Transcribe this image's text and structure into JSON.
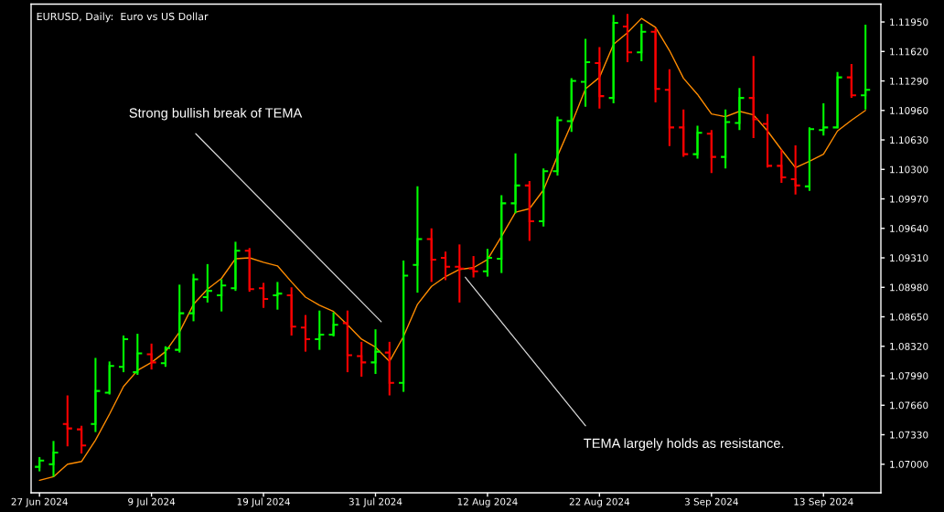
{
  "chart_data": {
    "type": "candlestick",
    "title": "EURUSD, Daily:  Euro vs US Dollar",
    "categories": [
      "27 Jun 2024",
      null,
      null,
      null,
      null,
      null,
      null,
      null,
      "9 Jul 2024",
      null,
      null,
      null,
      null,
      null,
      null,
      null,
      "19 Jul 2024",
      null,
      null,
      null,
      null,
      null,
      null,
      null,
      "31 Jul 2024",
      null,
      null,
      null,
      null,
      null,
      null,
      null,
      "12 Aug 2024",
      null,
      null,
      null,
      null,
      null,
      null,
      null,
      "22 Aug 2024",
      null,
      null,
      null,
      null,
      null,
      null,
      null,
      "3 Sep 2024",
      null,
      null,
      null,
      null,
      null,
      null,
      null,
      "13 Sep 2024",
      null,
      null,
      null
    ],
    "ohlc": [
      [
        1.0697,
        1.0708,
        1.0692,
        1.0704
      ],
      [
        1.07,
        1.0726,
        1.0686,
        1.0713
      ],
      [
        1.0745,
        1.0777,
        1.072,
        1.074
      ],
      [
        1.0739,
        1.0743,
        1.0712,
        1.0721
      ],
      [
        1.0745,
        1.0819,
        1.0736,
        1.0782
      ],
      [
        1.078,
        1.0815,
        1.0778,
        1.081
      ],
      [
        1.0809,
        1.0844,
        1.0803,
        1.084
      ],
      [
        1.0803,
        1.0846,
        1.08,
        1.0824
      ],
      [
        1.0823,
        1.0835,
        1.0806,
        1.0814
      ],
      [
        1.0813,
        1.0832,
        1.0809,
        1.083
      ],
      [
        1.0828,
        1.0901,
        1.0825,
        1.0869
      ],
      [
        1.0869,
        1.0913,
        1.086,
        1.0907
      ],
      [
        1.0887,
        1.0924,
        1.0881,
        1.0894
      ],
      [
        1.0889,
        1.0907,
        1.0871,
        1.09
      ],
      [
        1.0897,
        1.0949,
        1.0894,
        1.0939
      ],
      [
        1.0939,
        1.0942,
        1.0893,
        1.0896
      ],
      [
        1.0897,
        1.0903,
        1.0875,
        1.0885
      ],
      [
        1.0889,
        1.0904,
        1.0873,
        1.0891
      ],
      [
        1.0889,
        1.0898,
        1.0844,
        1.0854
      ],
      [
        1.0853,
        1.0867,
        1.0826,
        1.084
      ],
      [
        1.084,
        1.0872,
        1.0828,
        1.0845
      ],
      [
        1.0845,
        1.087,
        1.0843,
        1.0856
      ],
      [
        1.0858,
        1.0872,
        1.0803,
        1.0822
      ],
      [
        1.0821,
        1.0837,
        1.0798,
        1.0814
      ],
      [
        1.0814,
        1.0851,
        1.0801,
        1.0826
      ],
      [
        1.0825,
        1.0837,
        1.0777,
        1.0791
      ],
      [
        1.0791,
        1.0928,
        1.0781,
        1.0911
      ],
      [
        1.0923,
        1.1011,
        1.0892,
        1.0952
      ],
      [
        1.0952,
        1.0964,
        1.0904,
        1.0929
      ],
      [
        1.0931,
        1.0938,
        1.0906,
        1.0921
      ],
      [
        1.0921,
        1.0946,
        1.0881,
        1.0919
      ],
      [
        1.0919,
        1.0933,
        1.0909,
        1.0916
      ],
      [
        1.0916,
        1.0941,
        1.091,
        1.0931
      ],
      [
        1.093,
        1.1001,
        1.0914,
        1.0992
      ],
      [
        1.0992,
        1.1048,
        1.0981,
        1.1012
      ],
      [
        1.1012,
        1.1017,
        1.095,
        1.0972
      ],
      [
        1.0972,
        1.1031,
        1.0966,
        1.1028
      ],
      [
        1.1028,
        1.1089,
        1.1023,
        1.1085
      ],
      [
        1.1084,
        1.1132,
        1.1072,
        1.1129
      ],
      [
        1.1128,
        1.1176,
        1.11,
        1.115
      ],
      [
        1.1149,
        1.1167,
        1.1098,
        1.1112
      ],
      [
        1.111,
        1.1203,
        1.1104,
        1.1194
      ],
      [
        1.119,
        1.1204,
        1.115,
        1.1161
      ],
      [
        1.1161,
        1.1193,
        1.1151,
        1.1184
      ],
      [
        1.1184,
        1.1188,
        1.1105,
        1.112
      ],
      [
        1.1119,
        1.1142,
        1.1056,
        1.1077
      ],
      [
        1.1077,
        1.1097,
        1.1044,
        1.1047
      ],
      [
        1.1047,
        1.1079,
        1.1042,
        1.1071
      ],
      [
        1.107,
        1.1074,
        1.1026,
        1.1044
      ],
      [
        1.1044,
        1.1097,
        1.1031,
        1.1083
      ],
      [
        1.1082,
        1.1121,
        1.1074,
        1.111
      ],
      [
        1.111,
        1.1157,
        1.1065,
        1.1086
      ],
      [
        1.1081,
        1.1092,
        1.1032,
        1.1034
      ],
      [
        1.1034,
        1.1052,
        1.1015,
        1.1021
      ],
      [
        1.1019,
        1.1057,
        1.1002,
        1.1012
      ],
      [
        1.1011,
        1.1077,
        1.1006,
        1.1075
      ],
      [
        1.1074,
        1.1104,
        1.1068,
        1.1077
      ],
      [
        1.1077,
        1.1139,
        1.1076,
        1.1133
      ],
      [
        1.1133,
        1.1148,
        1.111,
        1.1113
      ],
      [
        1.1113,
        1.1192,
        1.1097,
        1.1119
      ]
    ],
    "colors": [
      "#00ff00",
      "#00ff00",
      "#ff0000",
      "#ff0000",
      "#00ff00",
      "#00ff00",
      "#00ff00",
      "#00ff00",
      "#ff0000",
      "#00ff00",
      "#00ff00",
      "#00ff00",
      "#00ff00",
      "#00ff00",
      "#00ff00",
      "#ff0000",
      "#ff0000",
      "#00ff00",
      "#ff0000",
      "#ff0000",
      "#00ff00",
      "#00ff00",
      "#ff0000",
      "#ff0000",
      "#00ff00",
      "#ff0000",
      "#00ff00",
      "#00ff00",
      "#ff0000",
      "#ff0000",
      "#ff0000",
      "#ff0000",
      "#00ff00",
      "#00ff00",
      "#00ff00",
      "#ff0000",
      "#00ff00",
      "#00ff00",
      "#00ff00",
      "#00ff00",
      "#ff0000",
      "#00ff00",
      "#ff0000",
      "#00ff00",
      "#ff0000",
      "#ff0000",
      "#ff0000",
      "#00ff00",
      "#ff0000",
      "#00ff00",
      "#00ff00",
      "#ff0000",
      "#ff0000",
      "#ff0000",
      "#ff0000",
      "#00ff00",
      "#00ff00",
      "#00ff00",
      "#ff0000",
      "#00ff00"
    ],
    "series": [
      {
        "type": "line",
        "color": "#ff8c00",
        "values": [
          1.0682,
          1.0686,
          1.07,
          1.0703,
          1.0727,
          1.0756,
          1.0787,
          1.0805,
          1.0814,
          1.0826,
          1.0848,
          1.0879,
          1.0896,
          1.0908,
          1.093,
          1.0931,
          1.0926,
          1.0922,
          1.0904,
          1.0887,
          1.0878,
          1.0871,
          1.0856,
          1.084,
          1.0831,
          1.0815,
          1.0843,
          1.0879,
          1.0899,
          1.091,
          1.0918,
          1.092,
          1.0929,
          1.0955,
          1.0982,
          1.0986,
          1.1007,
          1.1045,
          1.1081,
          1.112,
          1.1133,
          1.117,
          1.1183,
          1.1199,
          1.1189,
          1.1163,
          1.1132,
          1.1114,
          1.1092,
          1.1089,
          1.1095,
          1.1091,
          1.1073,
          1.1052,
          1.1032,
          1.1039,
          1.1047,
          1.1073,
          1.1085,
          1.1096
        ]
      }
    ],
    "ylim": [
      1.0668,
      1.1215
    ],
    "yticks": [
      {
        "value": 1.07,
        "label": "1.07000"
      },
      {
        "value": 1.0733,
        "label": "1.07330"
      },
      {
        "value": 1.0766,
        "label": "1.07660"
      },
      {
        "value": 1.0799,
        "label": "1.07990"
      },
      {
        "value": 1.0832,
        "label": "1.08320"
      },
      {
        "value": 1.0865,
        "label": "1.08650"
      },
      {
        "value": 1.0898,
        "label": "1.08980"
      },
      {
        "value": 1.0931,
        "label": "1.09310"
      },
      {
        "value": 1.0964,
        "label": "1.09640"
      },
      {
        "value": 1.0997,
        "label": "1.09970"
      },
      {
        "value": 1.103,
        "label": "1.10300"
      },
      {
        "value": 1.1063,
        "label": "1.10630"
      },
      {
        "value": 1.1096,
        "label": "1.10960"
      },
      {
        "value": 1.1129,
        "label": "1.11290"
      },
      {
        "value": 1.1162,
        "label": "1.11620"
      },
      {
        "value": 1.1195,
        "label": "1.11950"
      }
    ],
    "grid": false,
    "annotations": [
      "Strong bullish break of TEMA",
      "TEMA largely holds as resistance."
    ]
  }
}
